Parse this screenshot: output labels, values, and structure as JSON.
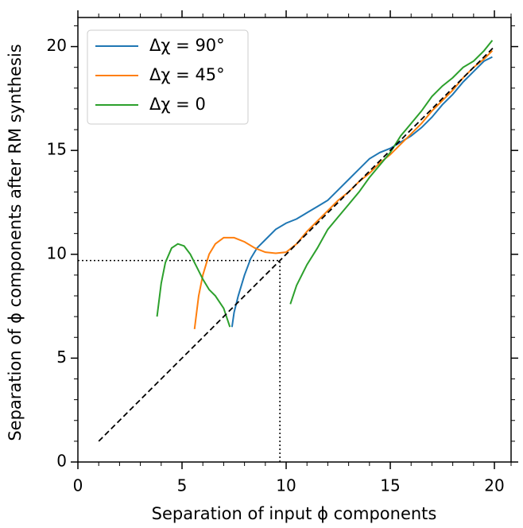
{
  "chart_data": {
    "type": "line",
    "xlabel": "Separation of input ϕ components",
    "ylabel": "Separation of ϕ components after RM synthesis",
    "xlim": [
      0,
      20.8
    ],
    "ylim": [
      0,
      21.4
    ],
    "xticks": [
      0,
      5,
      10,
      15,
      20
    ],
    "yticks": [
      0,
      5,
      10,
      15,
      20
    ],
    "xticks_minor": [
      1,
      2,
      3,
      4,
      6,
      7,
      8,
      9,
      11,
      12,
      13,
      14,
      16,
      17,
      18,
      19,
      20.8
    ],
    "yticks_minor": [
      1,
      2,
      3,
      4,
      6,
      7,
      8,
      9,
      11,
      12,
      13,
      14,
      16,
      17,
      18,
      19,
      21
    ],
    "legend": "upper left",
    "series": [
      {
        "name": "Δχ = 90°",
        "color": "#1f77b4",
        "x": [
          7.4,
          7.5,
          7.7,
          8.0,
          8.3,
          8.6,
          9.0,
          9.5,
          10.0,
          10.5,
          11.0,
          11.5,
          12.0,
          12.5,
          13.0,
          13.5,
          14.0,
          14.5,
          15.0,
          15.5,
          16.0,
          16.5,
          17.0,
          17.5,
          18.0,
          18.5,
          19.0,
          19.5,
          19.9
        ],
        "values": [
          6.5,
          7.2,
          8.0,
          9.0,
          9.8,
          10.3,
          10.7,
          11.2,
          11.5,
          11.7,
          12.0,
          12.3,
          12.6,
          13.1,
          13.6,
          14.1,
          14.6,
          14.9,
          15.1,
          15.4,
          15.7,
          16.1,
          16.6,
          17.2,
          17.7,
          18.3,
          18.8,
          19.3,
          19.5
        ]
      },
      {
        "name": "Δχ = 45°",
        "color": "#ff7f0e",
        "x": [
          5.6,
          5.8,
          6.0,
          6.3,
          6.6,
          7.0,
          7.5,
          8.0,
          8.5,
          9.0,
          9.5,
          10.0,
          10.5,
          11.0,
          11.5,
          12.0,
          12.5,
          13.0,
          13.5,
          14.0,
          14.5,
          15.0,
          15.5,
          16.0,
          16.5,
          17.0,
          17.5,
          18.0,
          18.5,
          19.0,
          19.5,
          19.9
        ],
        "values": [
          6.4,
          8.0,
          9.0,
          10.0,
          10.5,
          10.8,
          10.8,
          10.6,
          10.3,
          10.1,
          10.05,
          10.1,
          10.5,
          11.1,
          11.6,
          12.1,
          12.6,
          13.0,
          13.5,
          13.9,
          14.4,
          14.8,
          15.3,
          15.8,
          16.3,
          16.9,
          17.4,
          17.9,
          18.5,
          19.0,
          19.4,
          19.8
        ]
      },
      {
        "name": "Δχ = 0",
        "color": "#2ca02c",
        "x": [
          3.8,
          4.0,
          4.2,
          4.5,
          4.8,
          5.1,
          5.4,
          5.7,
          6.0,
          6.3,
          6.6,
          7.0,
          7.3,
          8.8,
          10.2,
          10.5,
          11.0,
          11.5,
          12.0,
          12.5,
          13.0,
          13.5,
          14.0,
          14.5,
          15.0,
          15.5,
          16.0,
          16.5,
          17.0,
          17.5,
          18.0,
          18.5,
          19.0,
          19.5,
          19.9
        ],
        "values": [
          7.0,
          8.6,
          9.6,
          10.3,
          10.5,
          10.4,
          10.0,
          9.4,
          8.8,
          8.3,
          8.0,
          7.4,
          6.5,
          null,
          7.6,
          8.5,
          9.5,
          10.3,
          11.2,
          11.8,
          12.4,
          13.0,
          13.7,
          14.3,
          14.9,
          15.7,
          16.3,
          16.9,
          17.6,
          18.1,
          18.5,
          19.0,
          19.3,
          19.8,
          20.3
        ]
      }
    ],
    "reference_line": {
      "x": [
        1,
        20
      ],
      "values": [
        1,
        20
      ],
      "color": "#000000",
      "dash": "dashed"
    },
    "guide": {
      "x": 9.7,
      "y": 9.7,
      "color": "#000000",
      "dash": "dotted"
    }
  }
}
